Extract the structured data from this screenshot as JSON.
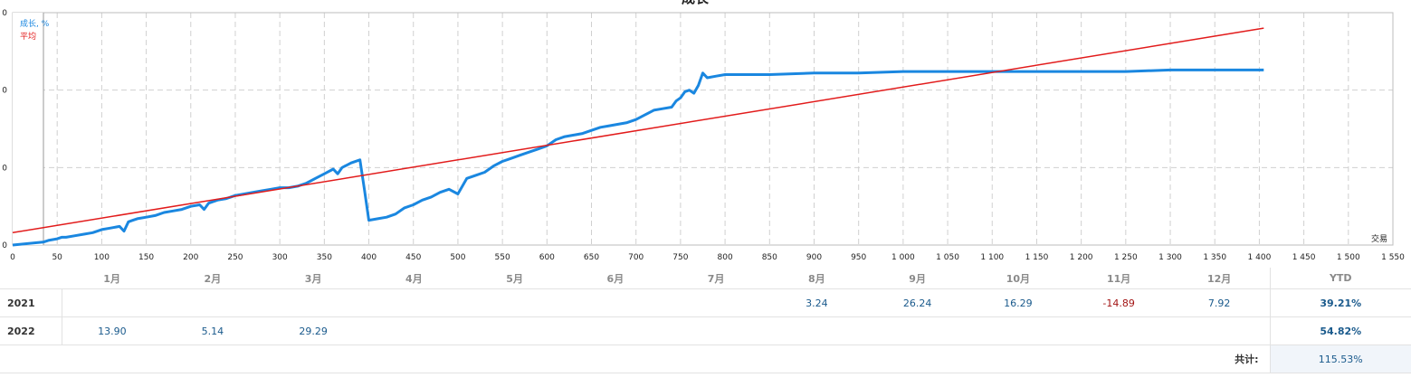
{
  "chart_data": {
    "type": "line",
    "title": "成长",
    "xlabel": "交易",
    "ylabel": "",
    "xlim": [
      0,
      1550
    ],
    "ylim": [
      0,
      150
    ],
    "x_ticks": [
      "0",
      "50",
      "100",
      "150",
      "200",
      "250",
      "300",
      "350",
      "400",
      "450",
      "500",
      "550",
      "600",
      "650",
      "700",
      "750",
      "800",
      "850",
      "900",
      "950",
      "1 000",
      "1 050",
      "1 100",
      "1 150",
      "1 200",
      "1 250",
      "1 300",
      "1 350",
      "1 400",
      "1 450",
      "1 500",
      "1 550"
    ],
    "grid": true,
    "legend_position": "top-left",
    "series": [
      {
        "name": "成长, %",
        "color": "#1a87e0",
        "x": [
          0,
          35,
          40,
          50,
          55,
          60,
          70,
          80,
          90,
          100,
          110,
          120,
          125,
          130,
          135,
          140,
          150,
          160,
          170,
          180,
          190,
          200,
          210,
          215,
          220,
          230,
          240,
          250,
          260,
          270,
          280,
          290,
          300,
          310,
          320,
          330,
          340,
          350,
          360,
          365,
          370,
          380,
          390,
          395,
          400,
          410,
          420,
          430,
          440,
          450,
          460,
          470,
          480,
          490,
          500,
          510,
          520,
          530,
          540,
          550,
          560,
          570,
          580,
          590,
          600,
          610,
          620,
          630,
          640,
          650,
          660,
          670,
          680,
          690,
          700,
          710,
          720,
          730,
          740,
          745,
          750,
          755,
          760,
          765,
          770,
          775,
          780,
          790,
          800,
          850,
          900,
          950,
          1000,
          1050,
          1100,
          1150,
          1200,
          1250,
          1300,
          1350,
          1400,
          1405
        ],
        "values": [
          0,
          2,
          3,
          4,
          5,
          5,
          6,
          7,
          8,
          10,
          11,
          12,
          9,
          15,
          16,
          17,
          18,
          19,
          21,
          22,
          23,
          25,
          26,
          23,
          27,
          29,
          30,
          32,
          33,
          34,
          35,
          36,
          37,
          37,
          38,
          40,
          43,
          46,
          49,
          46,
          50,
          53,
          55,
          36,
          16,
          17,
          18,
          20,
          24,
          26,
          29,
          31,
          34,
          36,
          33,
          43,
          45,
          47,
          51,
          54,
          56,
          58,
          60,
          62,
          64,
          68,
          70,
          71,
          72,
          74,
          76,
          77,
          78,
          79,
          81,
          84,
          87,
          88,
          89,
          93,
          95,
          99,
          100,
          98,
          103,
          111,
          108,
          109,
          110,
          110,
          111,
          111,
          112,
          112,
          112,
          112,
          112,
          112,
          113,
          113,
          113,
          113
        ]
      },
      {
        "name": "平均",
        "color": "#e21b1b",
        "x": [
          0,
          1405
        ],
        "values": [
          8,
          140
        ]
      }
    ]
  },
  "returns_table": {
    "months": [
      "1月",
      "2月",
      "3月",
      "4月",
      "5月",
      "6月",
      "7月",
      "8月",
      "9月",
      "10月",
      "11月",
      "12月"
    ],
    "ytd_header": "YTD",
    "rows": [
      {
        "year": "2021",
        "values": [
          "",
          "",
          "",
          "",
          "",
          "",
          "",
          "3.24",
          "26.24",
          "16.29",
          "-14.89",
          "7.92"
        ],
        "ytd": "39.21%"
      },
      {
        "year": "2022",
        "values": [
          "13.90",
          "5.14",
          "29.29",
          "",
          "",
          "",
          "",
          "",
          "",
          "",
          "",
          ""
        ],
        "ytd": "54.82%"
      }
    ],
    "total_label": "共计:",
    "total_value": "115.53%"
  }
}
